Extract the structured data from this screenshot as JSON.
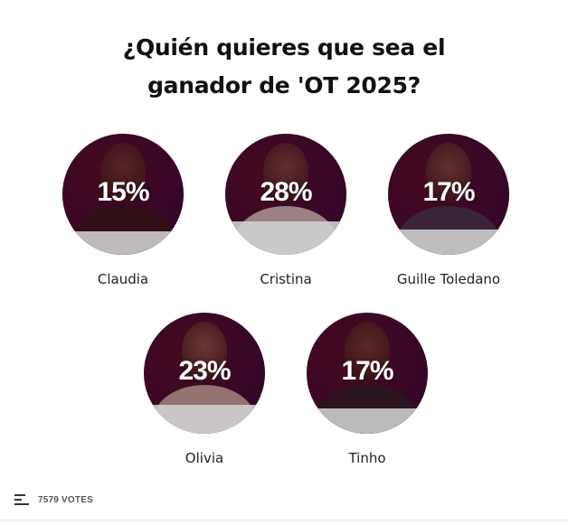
{
  "poll": {
    "title_line1": "¿Quién quieres que sea el",
    "title_line2": "ganador de 'OT 2025?"
  },
  "options": [
    {
      "name": "Claudia",
      "percent_label": "15%",
      "percent": 15,
      "shirt_color": "#2a1a1a",
      "skin_color": "#6a3a32"
    },
    {
      "name": "Cristina",
      "percent_label": "28%",
      "percent": 28,
      "shirt_color": "#d8cfc9",
      "skin_color": "#7a4a42"
    },
    {
      "name": "Guille Toledano",
      "percent_label": "17%",
      "percent": 17,
      "shirt_color": "#3a3a50",
      "skin_color": "#7a4e44"
    },
    {
      "name": "Olivia",
      "percent_label": "23%",
      "percent": 23,
      "shirt_color": "#c9b8a8",
      "skin_color": "#8a5a4a"
    },
    {
      "name": "Tinho",
      "percent_label": "17%",
      "percent": 17,
      "shirt_color": "#222226",
      "skin_color": "#6e4234"
    }
  ],
  "footer": {
    "votes_count": "7579",
    "votes_label": "VOTES",
    "icon": "poll-bars-icon"
  },
  "colors": {
    "circle_background": "#4a0f28",
    "circle_accent": "#2a0a3a",
    "result_fill": "#d2d2d2"
  }
}
